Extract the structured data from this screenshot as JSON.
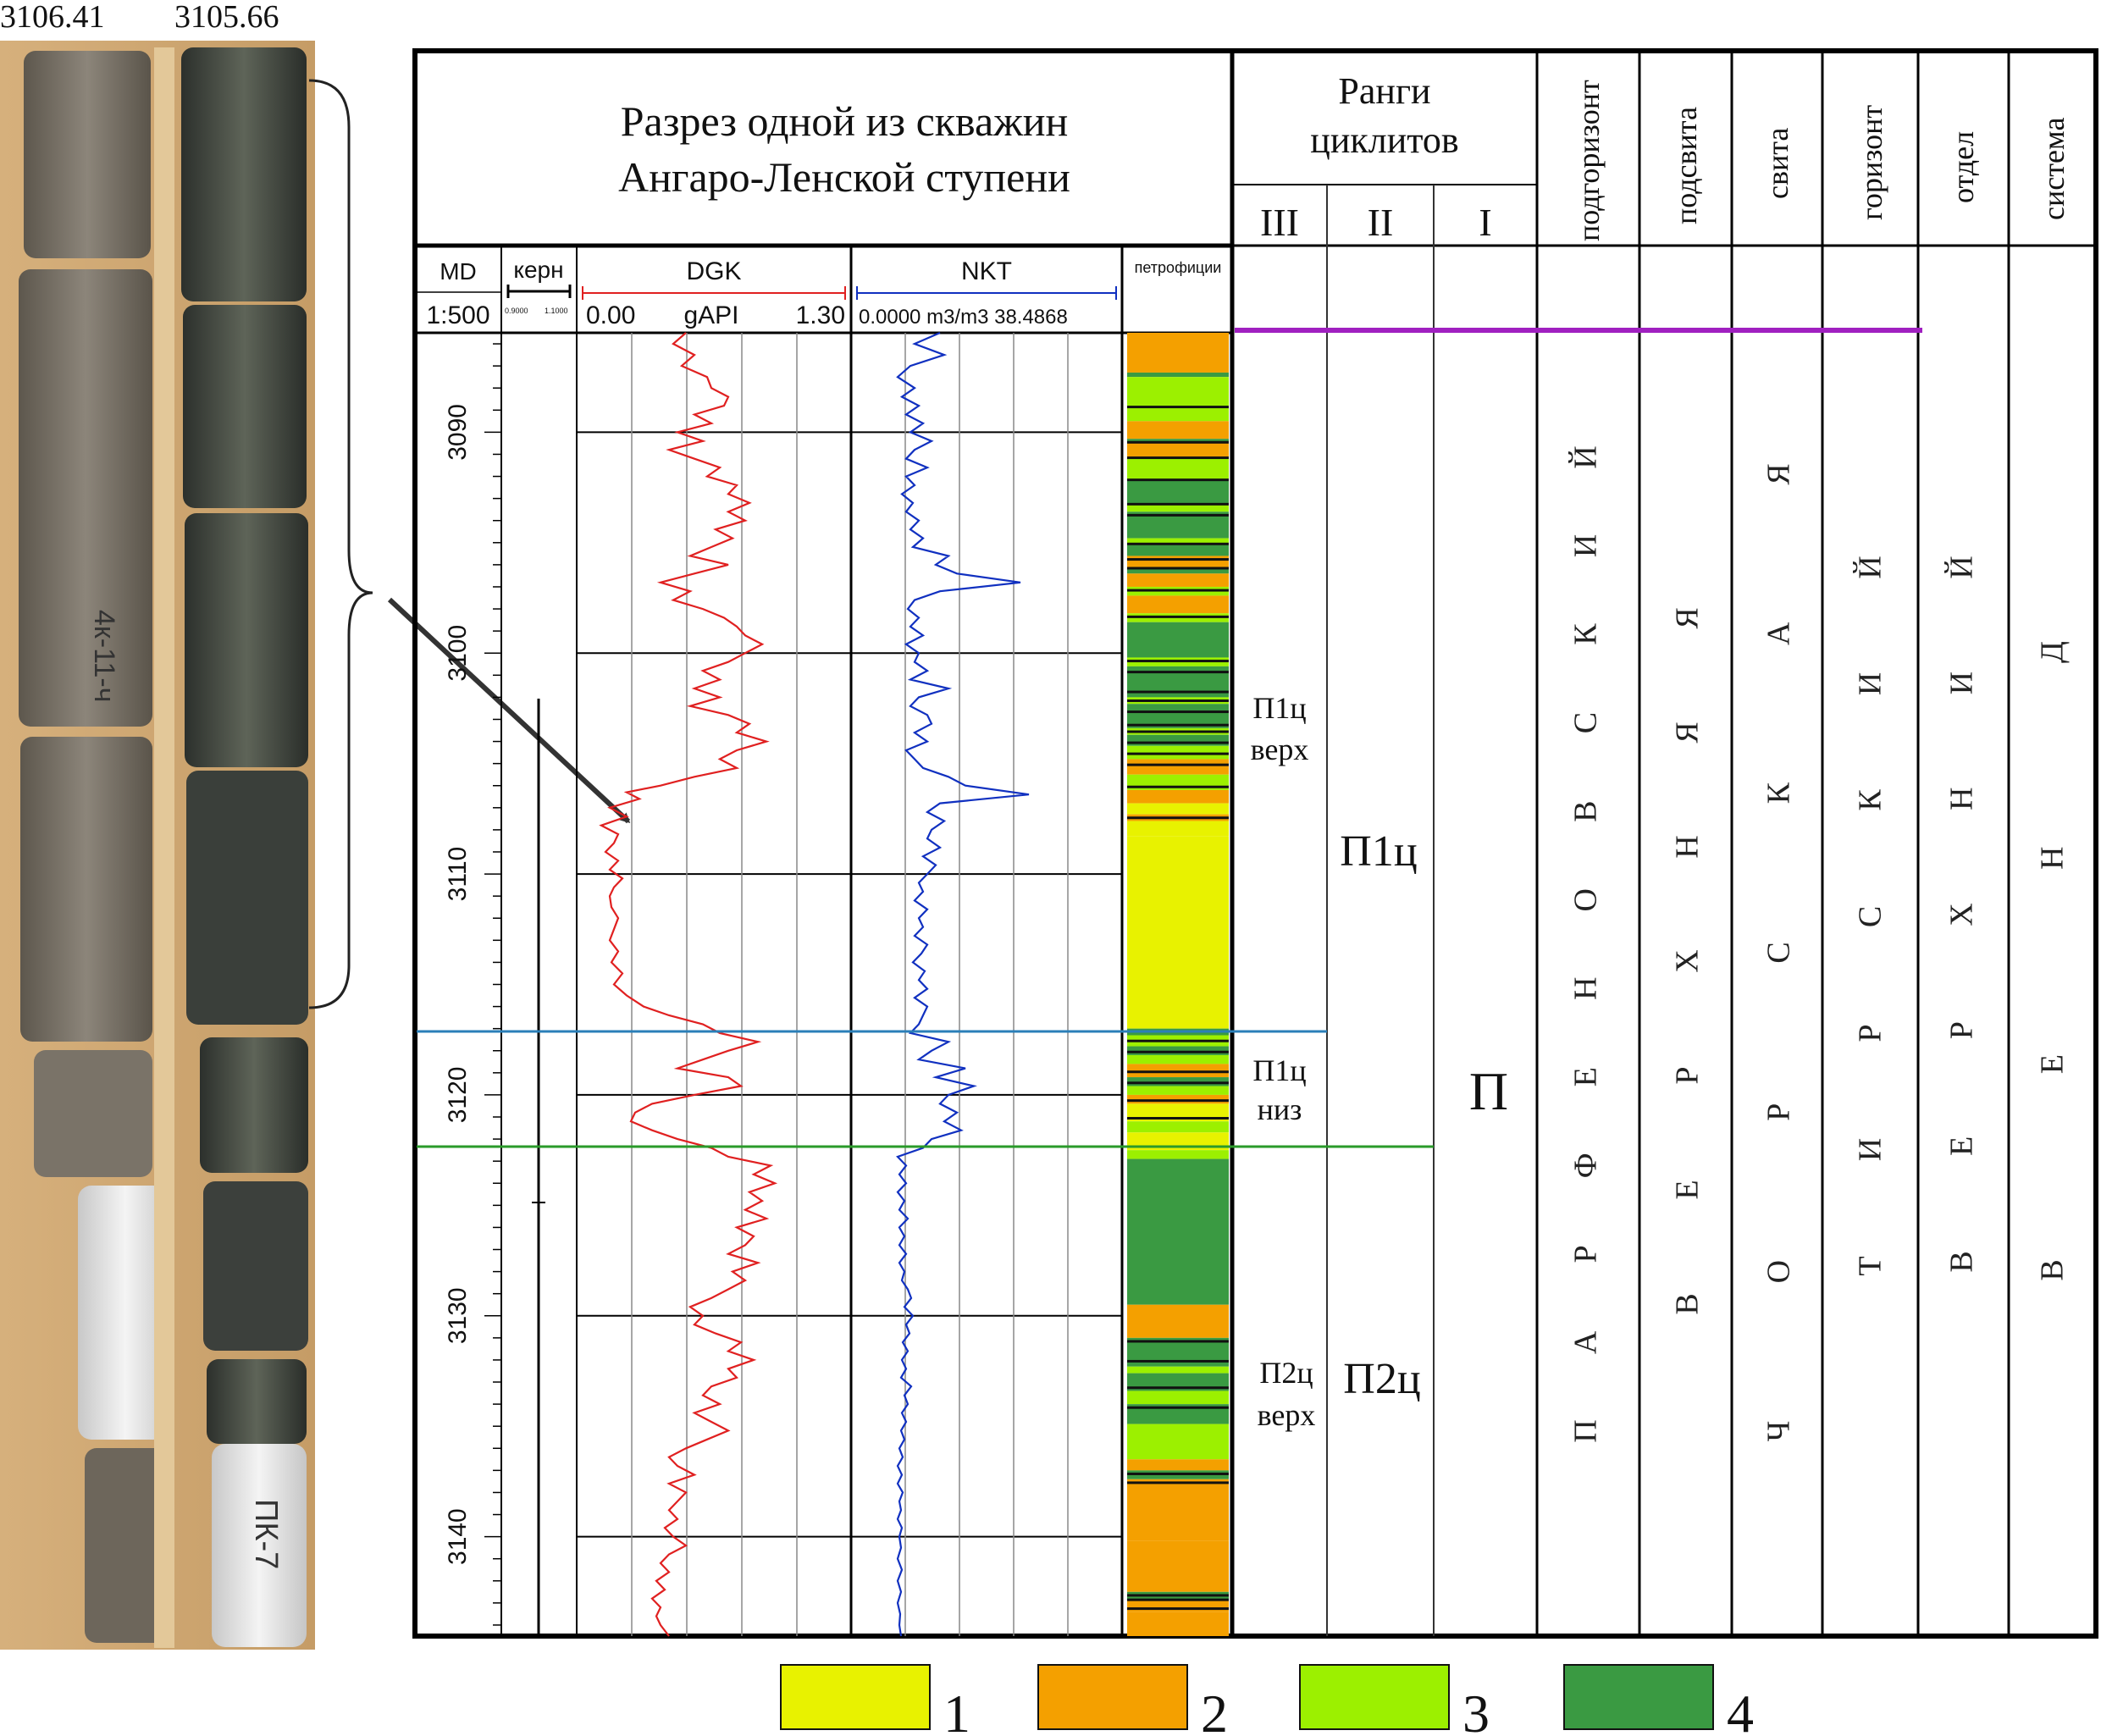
{
  "core_photo": {
    "depth_left": "3106.41",
    "depth_right": "3105.66",
    "labels": [
      "4к-11-ч",
      "ПК-7"
    ]
  },
  "header": {
    "title_line1": "Разрез одной из скважин",
    "title_line2": "Ангаро-Ленской ступени",
    "ranks_title_line1": "Ранги",
    "ranks_title_line2": "циклитов",
    "rank_levels": [
      "III",
      "II",
      "I"
    ],
    "strat_columns": [
      "подгоризонт",
      "подсвита",
      "свита",
      "горизонт",
      "отдел",
      "система"
    ]
  },
  "tracks": {
    "md": {
      "label": "MD",
      "scale": "1:500"
    },
    "core": {
      "label": "керн",
      "min": "0.9000",
      "max": "1.1000"
    },
    "dgk": {
      "label": "DGK",
      "min": "0.00",
      "unit": "gAPI",
      "max": "1.30",
      "color": "#e02020"
    },
    "nkt": {
      "label": "NKT",
      "range": "0.0000 m3/m3 38.4868",
      "color": "#1030c0"
    },
    "petro": {
      "label": "петрофиции"
    }
  },
  "depth_ticks": [
    "3090",
    "3100",
    "3110",
    "3120",
    "3130",
    "3140"
  ],
  "cyclites": {
    "rank3": [
      {
        "line1": "П1ц",
        "line2": "верх"
      },
      {
        "line1": "П1ц",
        "line2": "низ"
      },
      {
        "line1": "П2ц",
        "line2": "верх"
      }
    ],
    "rank2": [
      "П1ц",
      "П2ц"
    ],
    "rank1": [
      "П"
    ]
  },
  "stratigraphy": {
    "podgorizont": "ПАРФЕНОВСКИЙ",
    "podsvita": "ВЕРХНЯЯ",
    "svita": "ЧОРСКАЯ",
    "gorizont": "ТИРСКИЙ",
    "otdel": "ВЕРХНИЙ",
    "sistema": "ВЕНД"
  },
  "boundary_colors": {
    "top": "#a020c0",
    "p1_split": "#2a7fb8",
    "p2_top": "#2a9a2a"
  },
  "legend": [
    {
      "number": "1",
      "color": "#e8f200"
    },
    {
      "number": "2",
      "color": "#f4a000"
    },
    {
      "number": "3",
      "color": "#9cf000"
    },
    {
      "number": "4",
      "color": "#3a9a42"
    }
  ]
}
